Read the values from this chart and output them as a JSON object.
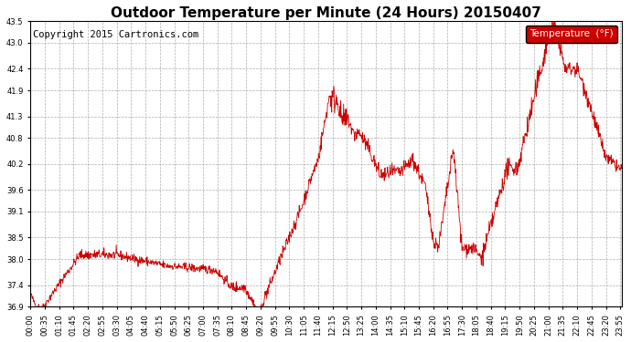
{
  "title": "Outdoor Temperature per Minute (24 Hours) 20150407",
  "copyright_text": "Copyright 2015 Cartronics.com",
  "legend_label": "Temperature  (°F)",
  "line_color": "#cc0000",
  "legend_bg": "#cc0000",
  "legend_text_color": "#ffffff",
  "background_color": "#ffffff",
  "plot_bg_color": "#ffffff",
  "grid_color": "#999999",
  "ylim": [
    36.9,
    43.5
  ],
  "yticks": [
    36.9,
    37.4,
    38.0,
    38.5,
    39.1,
    39.6,
    40.2,
    40.8,
    41.3,
    41.9,
    42.4,
    43.0,
    43.5
  ],
  "num_points": 1440,
  "x_tick_interval": 35,
  "title_fontsize": 11,
  "tick_fontsize": 6.0,
  "copyright_fontsize": 7.5
}
